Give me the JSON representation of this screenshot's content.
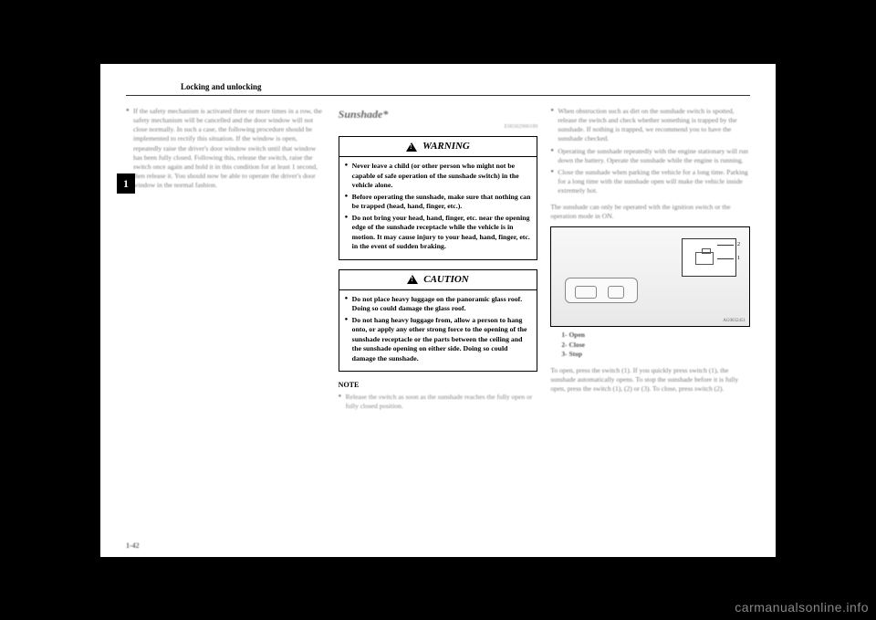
{
  "header": {
    "title": "Locking and unlocking"
  },
  "side_tab": "1",
  "page_number": "1-42",
  "watermark": "carmanualsonline.info",
  "col1": {
    "para": "If the safety mechanism is activated three or more times in a row, the safety mechanism will be cancelled and the door window will not close normally. In such a case, the following procedure should be implemented to rectify this situation. If the window is open, repeatedly raise the driver's door window switch until that window has been fully closed. Following this, release the switch, raise the switch once again and hold it in this condition for at least 1 second, then release it. You should now be able to operate the driver's door window in the normal fashion."
  },
  "col2": {
    "section_title": "Sunshade*",
    "section_code": "E00302900189",
    "warning_title": "WARNING",
    "warning_items": [
      "Never leave a child (or other person who might not be capable of safe operation of the sunshade switch) in the vehicle alone.",
      "Before operating the sunshade, make sure that nothing can be trapped (head, hand, finger, etc.).",
      "Do not bring your head, hand, finger, etc. near the opening edge of the sunshade receptacle while the vehicle is in motion. It may cause injury to your head, hand, finger, etc. in the event of sudden braking."
    ],
    "caution_title": "CAUTION",
    "caution_items": [
      "Do not place heavy luggage on the panoramic glass roof. Doing so could damage the glass roof.",
      "Do not hang heavy luggage from, allow a person to hang onto, or apply any other strong force to the opening of the sunshade receptacle or the parts between the ceiling and the sunshade opening on either side. Doing so could damage the sunshade."
    ],
    "note_label": "NOTE",
    "note_text": "Release the switch as soon as the sunshade reaches the fully open or fully closed position."
  },
  "col3": {
    "top_items": [
      "When obstruction such as dirt on the sunshade switch is spotted, release the switch and check whether something is trapped by the sunshade. If nothing is trapped, we recommend you to have the sunshade checked.",
      "Operating the sunshade repeatedly with the engine stationary will run down the battery. Operate the sunshade while the engine is running.",
      "Close the sunshade when parking the vehicle for a long time. Parking for a long time with the sunshade open will make the vehicle inside extremely hot."
    ],
    "mid_line": "The sunshade can only be operated with the ignition switch or the operation mode in ON.",
    "figure": {
      "code": "AG0032451",
      "labels": {
        "l1": "2",
        "l2": "1"
      },
      "caption": [
        "1- Open",
        "2- Close",
        "3- Stop"
      ]
    },
    "bottom": "To open, press the switch (1). If you quickly press switch (1), the sunshade automatically opens. To stop the sunshade before it is fully open, press the switch (1), (2) or (3). To close, press switch (2)."
  }
}
